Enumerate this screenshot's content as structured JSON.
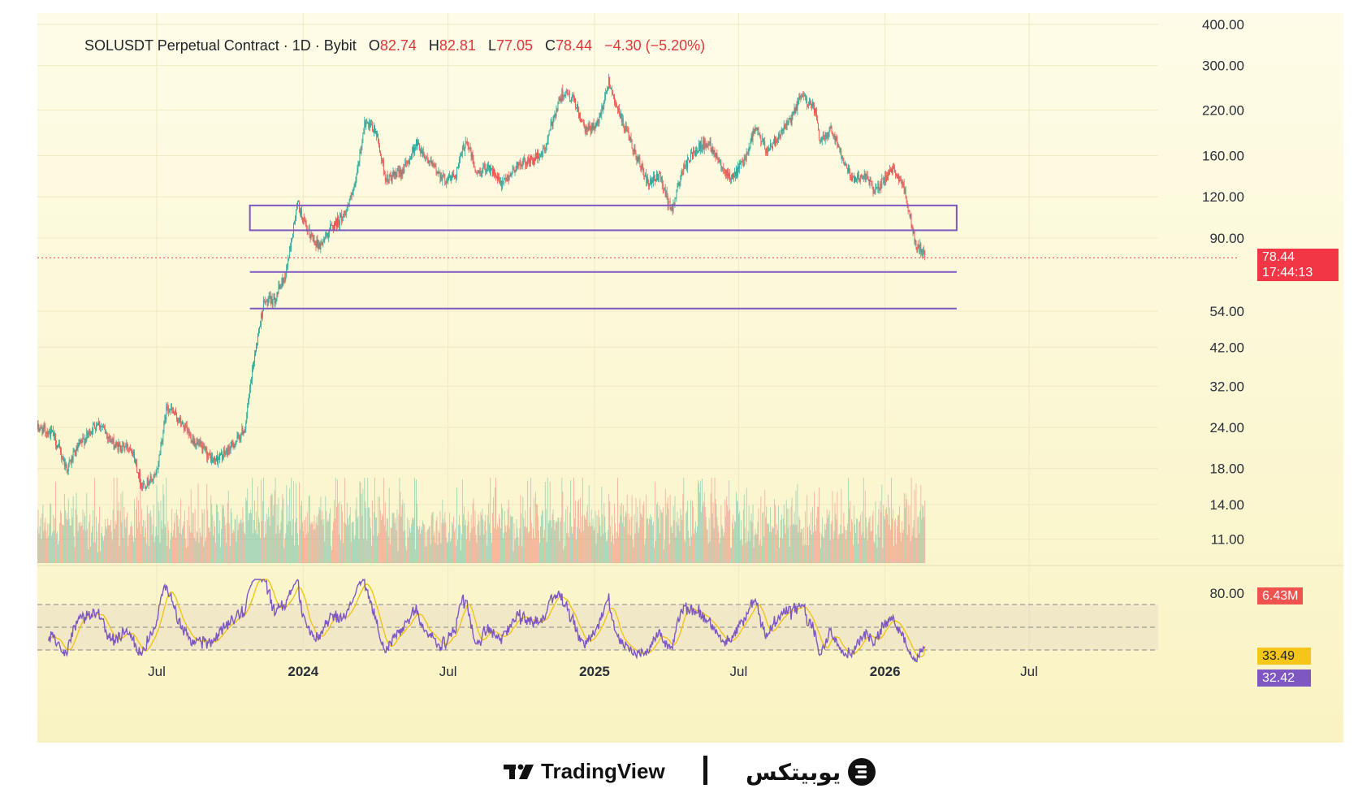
{
  "legend": {
    "symbol": "SOLUSDT Perpetual Contract · 1D · Bybit",
    "open_label": "O",
    "open": "82.74",
    "high_label": "H",
    "high": "82.81",
    "low_label": "L",
    "low": "77.05",
    "close_label": "C",
    "close": "78.44",
    "change": "−4.30 (−5.20%)"
  },
  "price_axis": {
    "ticks": [
      "400.00",
      "300.00",
      "220.00",
      "160.00",
      "120.00",
      "90.00",
      "54.00",
      "42.00",
      "32.00",
      "24.00",
      "18.00",
      "14.00",
      "11.00"
    ],
    "tick_values": [
      400,
      300,
      220,
      160,
      120,
      90,
      54,
      42,
      32,
      24,
      18,
      14,
      11
    ]
  },
  "current_price": {
    "value": "78.44",
    "countdown": "17:44:13",
    "numeric": 78.44
  },
  "volume_tag": "6.43M",
  "rsi_axis": {
    "tick": "80.00",
    "ma_value": "33.49",
    "rsi_value": "32.42"
  },
  "time_axis": [
    "Jul",
    "2024",
    "Jul",
    "2025",
    "Jul",
    "2026",
    "Jul"
  ],
  "footer": {
    "tradingview": "TradingView",
    "brand": "یوبیتکس"
  },
  "colors": {
    "up": "#26a69a",
    "down": "#ef5350",
    "zone": "#7e57c2",
    "rsi_line": "#7e57c2",
    "rsi_ma": "#f0c419",
    "price_tag": "#f23645",
    "volume_tag": "#ef5350",
    "ma_tag": "#f5c518",
    "rsi_tag": "#7e57c2"
  },
  "chart_data": {
    "type": "candlestick",
    "symbol": "SOLUSDT",
    "timeframe": "1D",
    "scale": "log",
    "ylim": [
      10,
      420
    ],
    "x_range": [
      "2023-02-01",
      "2026-11-30"
    ],
    "price_path": [
      [
        "2023-02-01",
        24
      ],
      [
        "2023-02-20",
        23
      ],
      [
        "2023-03-10",
        18
      ],
      [
        "2023-03-25",
        21
      ],
      [
        "2023-04-18",
        25
      ],
      [
        "2023-05-10",
        21
      ],
      [
        "2023-05-30",
        21
      ],
      [
        "2023-06-12",
        16
      ],
      [
        "2023-06-30",
        17
      ],
      [
        "2023-07-14",
        28
      ],
      [
        "2023-07-30",
        25
      ],
      [
        "2023-08-16",
        22
      ],
      [
        "2023-09-10",
        19
      ],
      [
        "2023-09-25",
        20
      ],
      [
        "2023-10-10",
        22
      ],
      [
        "2023-10-20",
        24
      ],
      [
        "2023-11-01",
        40
      ],
      [
        "2023-11-12",
        57
      ],
      [
        "2023-11-26",
        59
      ],
      [
        "2023-12-10",
        70
      ],
      [
        "2023-12-25",
        115
      ],
      [
        "2024-01-05",
        95
      ],
      [
        "2024-01-22",
        85
      ],
      [
        "2024-02-05",
        97
      ],
      [
        "2024-02-20",
        105
      ],
      [
        "2024-03-05",
        125
      ],
      [
        "2024-03-18",
        200
      ],
      [
        "2024-04-01",
        190
      ],
      [
        "2024-04-14",
        135
      ],
      [
        "2024-04-28",
        140
      ],
      [
        "2024-05-10",
        150
      ],
      [
        "2024-05-22",
        175
      ],
      [
        "2024-06-10",
        150
      ],
      [
        "2024-06-28",
        135
      ],
      [
        "2024-07-10",
        140
      ],
      [
        "2024-07-24",
        180
      ],
      [
        "2024-08-06",
        140
      ],
      [
        "2024-08-20",
        150
      ],
      [
        "2024-09-06",
        130
      ],
      [
        "2024-09-26",
        150
      ],
      [
        "2024-10-15",
        155
      ],
      [
        "2024-10-30",
        165
      ],
      [
        "2024-11-12",
        215
      ],
      [
        "2024-11-22",
        250
      ],
      [
        "2024-12-06",
        235
      ],
      [
        "2024-12-20",
        190
      ],
      [
        "2025-01-05",
        200
      ],
      [
        "2025-01-19",
        270
      ],
      [
        "2025-02-02",
        210
      ],
      [
        "2025-02-20",
        165
      ],
      [
        "2025-03-10",
        130
      ],
      [
        "2025-03-24",
        140
      ],
      [
        "2025-04-07",
        108
      ],
      [
        "2025-04-22",
        145
      ],
      [
        "2025-05-10",
        170
      ],
      [
        "2025-05-25",
        175
      ],
      [
        "2025-06-10",
        150
      ],
      [
        "2025-06-22",
        135
      ],
      [
        "2025-07-08",
        155
      ],
      [
        "2025-07-22",
        195
      ],
      [
        "2025-08-05",
        165
      ],
      [
        "2025-08-20",
        185
      ],
      [
        "2025-09-05",
        205
      ],
      [
        "2025-09-18",
        245
      ],
      [
        "2025-10-05",
        220
      ],
      [
        "2025-10-11",
        175
      ],
      [
        "2025-10-25",
        195
      ],
      [
        "2025-11-08",
        160
      ],
      [
        "2025-11-22",
        135
      ],
      [
        "2025-12-06",
        140
      ],
      [
        "2025-12-20",
        125
      ],
      [
        "2026-01-05",
        140
      ],
      [
        "2026-01-14",
        145
      ],
      [
        "2026-01-26",
        125
      ],
      [
        "2026-02-03",
        100
      ],
      [
        "2026-02-09",
        84
      ],
      [
        "2026-02-14",
        85
      ],
      [
        "2026-02-20",
        78.44
      ]
    ],
    "zones": [
      {
        "type": "box",
        "from": "2023-10-26",
        "to": "2026-04-01",
        "low": 95,
        "high": 113
      },
      {
        "type": "line",
        "from": "2023-10-26",
        "to": "2026-04-01",
        "value": 71
      },
      {
        "type": "line",
        "from": "2023-10-26",
        "to": "2026-04-01",
        "value": 55
      }
    ],
    "volume": {
      "last_value": "6.43M"
    },
    "indicators": {
      "RSI": {
        "bands": [
          70,
          50,
          30
        ],
        "rsi_last": 32.42,
        "ma_last": 33.49
      }
    }
  }
}
